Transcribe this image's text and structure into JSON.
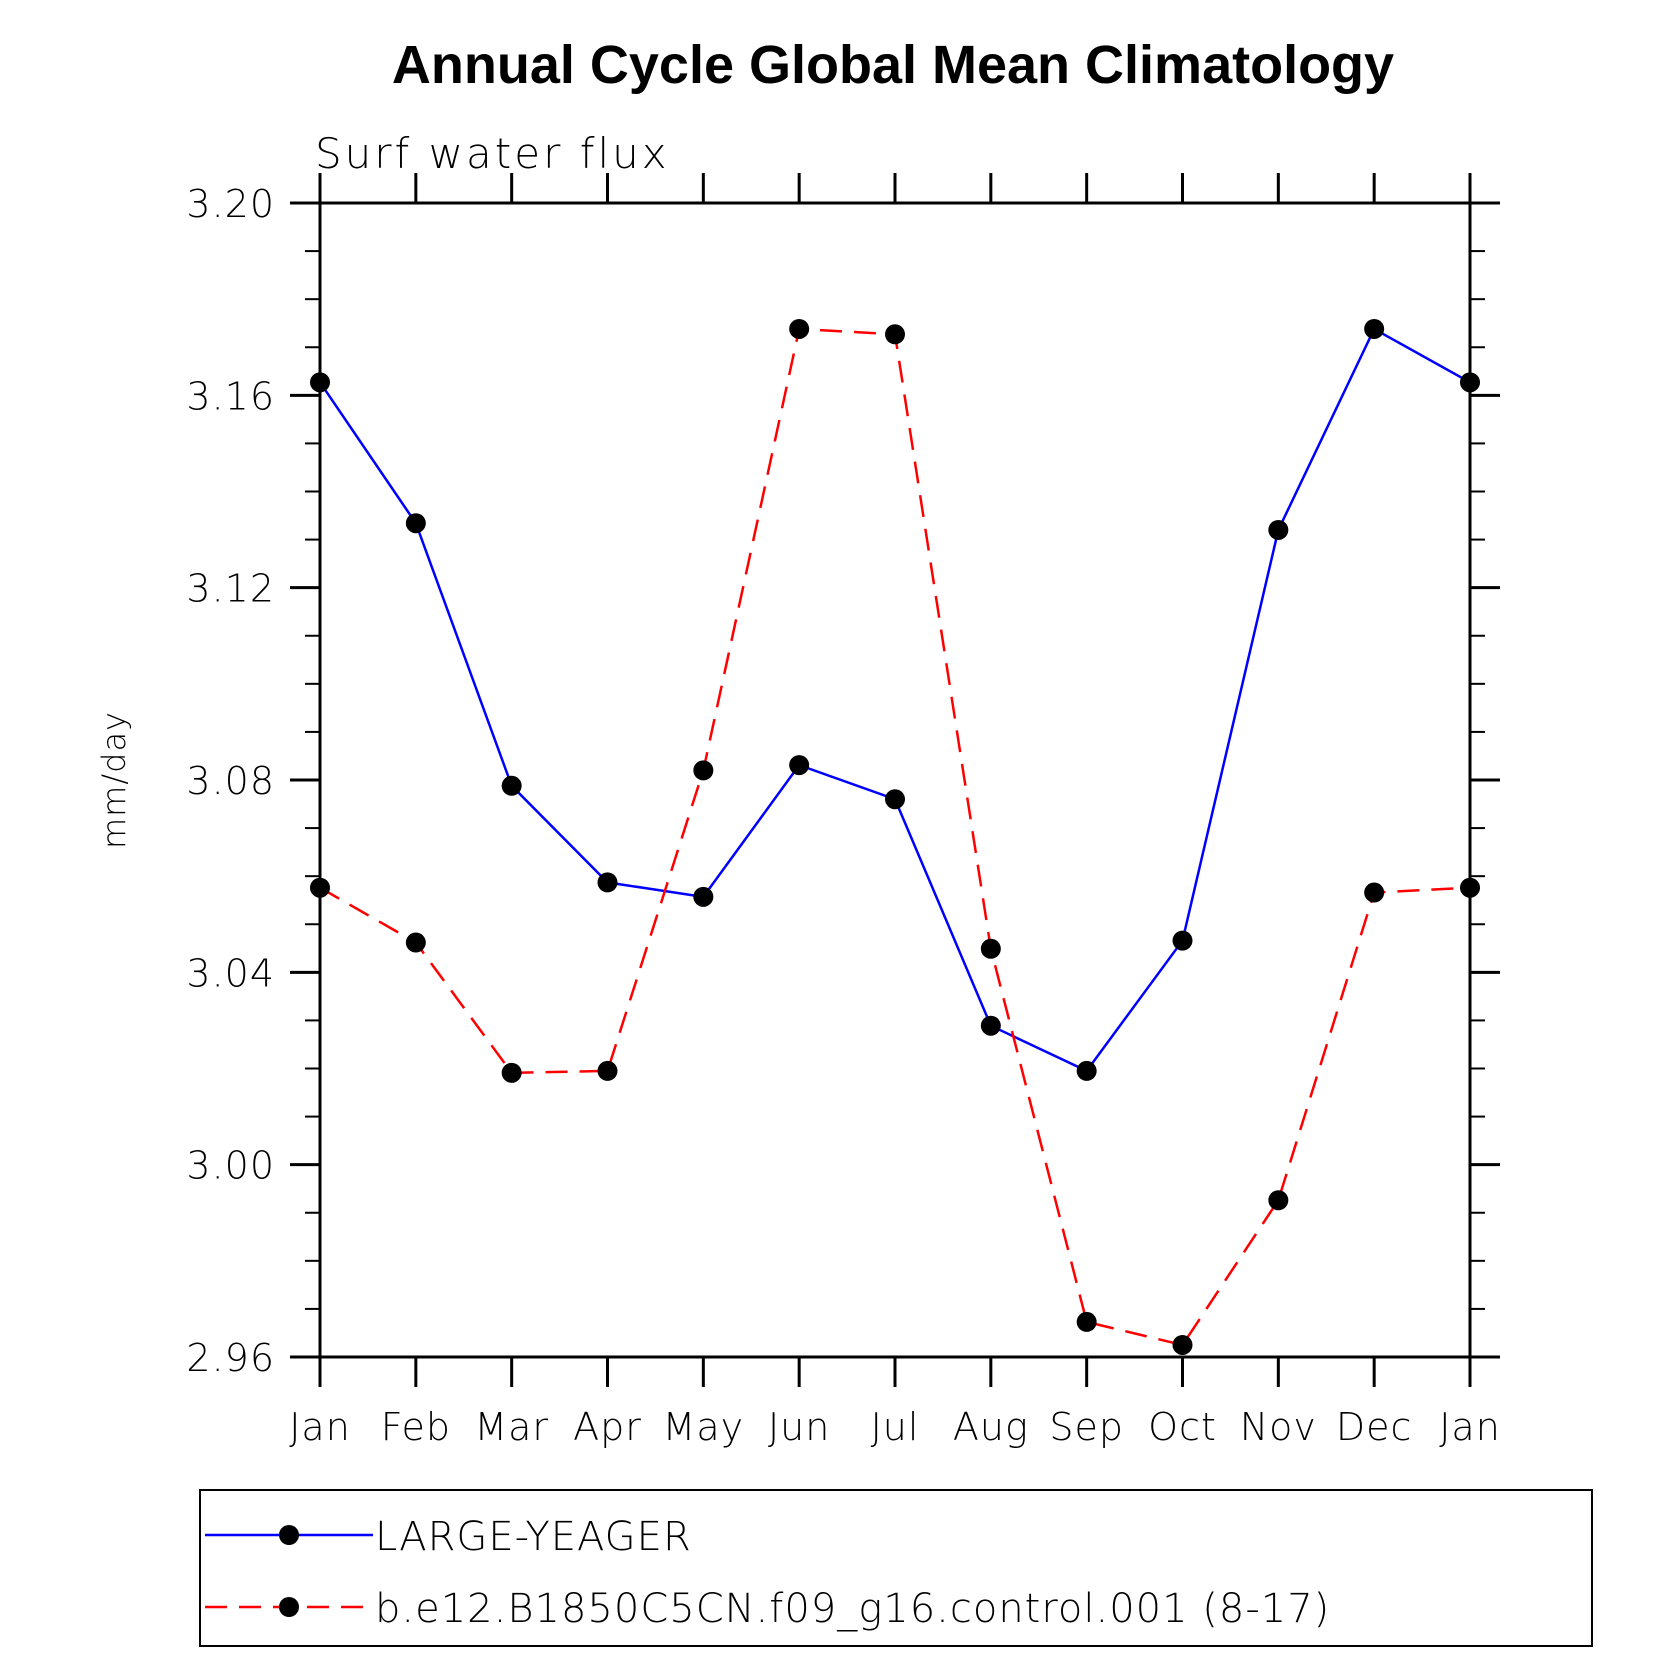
{
  "chart_data": {
    "type": "line",
    "title": "Annual Cycle Global Mean Climatology",
    "subtitle": "Surf water flux",
    "xlabel": "",
    "ylabel": "mm/day",
    "categories": [
      "Jan",
      "Feb",
      "Mar",
      "Apr",
      "May",
      "Jun",
      "Jul",
      "Aug",
      "Sep",
      "Oct",
      "Nov",
      "Dec",
      "Jan"
    ],
    "ylim": [
      2.96,
      3.2
    ],
    "yticks": [
      "3.20",
      "3.16",
      "3.12",
      "3.08",
      "3.04",
      "3.00",
      "2.96"
    ],
    "series": [
      {
        "name": "LARGE-YEAGER",
        "color": "#0000ff",
        "style": "solid",
        "values": [
          3.1627,
          3.1334,
          3.0788,
          3.0587,
          3.0557,
          3.0831,
          3.076,
          3.0289,
          3.0195,
          3.0466,
          3.132,
          3.1738,
          3.1627
        ]
      },
      {
        "name": "b.e12.B1850C5CN.f09_g16.control.001 (8-17)",
        "color": "#ff0000",
        "style": "dashed",
        "values": [
          3.0576,
          3.0462,
          3.0191,
          3.0195,
          3.082,
          3.1738,
          3.1727,
          3.0449,
          2.9673,
          2.9625,
          2.9926,
          3.0566,
          3.0576
        ]
      }
    ],
    "legend_position": "bottom"
  }
}
